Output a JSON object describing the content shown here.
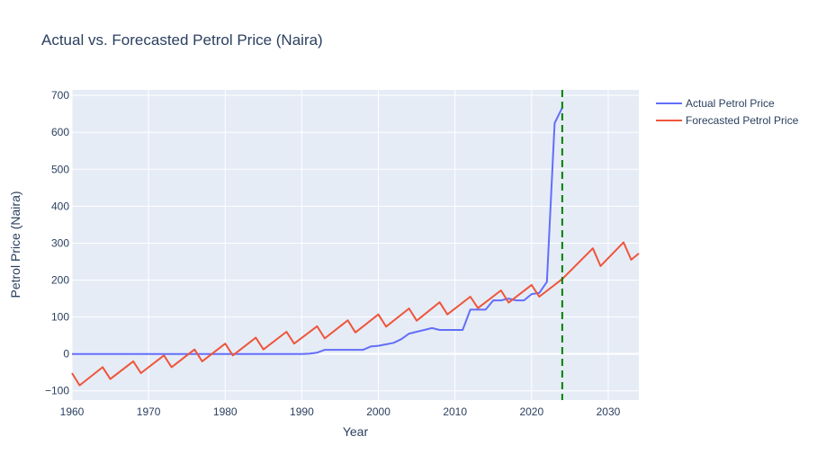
{
  "chart_data": {
    "type": "line",
    "title": "Actual vs. Forecasted Petrol Price (Naira)",
    "xlabel": "Year",
    "ylabel": "Petrol Price (Naira)",
    "xlim": [
      1960,
      2034
    ],
    "ylim": [
      -125,
      715
    ],
    "x_ticks": [
      1960,
      1970,
      1980,
      1990,
      2000,
      2010,
      2020,
      2030
    ],
    "y_ticks": [
      -100,
      0,
      100,
      200,
      300,
      400,
      500,
      600,
      700
    ],
    "grid": true,
    "legend_position": "top-right",
    "vertical_line": {
      "x": 2024,
      "color": "#008000",
      "style": "dashed"
    },
    "series": [
      {
        "name": "Actual Petrol Price",
        "color": "#636efa",
        "x": [
          1960,
          1970,
          1980,
          1990,
          1991,
          1992,
          1993,
          1994,
          1995,
          1996,
          1997,
          1998,
          1999,
          2000,
          2001,
          2002,
          2003,
          2004,
          2005,
          2006,
          2007,
          2008,
          2009,
          2010,
          2011,
          2012,
          2013,
          2014,
          2015,
          2016,
          2017,
          2018,
          2019,
          2020,
          2021,
          2022,
          2023,
          2024
        ],
        "values": [
          0,
          0,
          0,
          0,
          0.7,
          3.3,
          11,
          11,
          11,
          11,
          11,
          11,
          20,
          22,
          26,
          30,
          40,
          55,
          60,
          65,
          70,
          65,
          65,
          65,
          65,
          120,
          120,
          120,
          145,
          145,
          150,
          145,
          145,
          162,
          165,
          195,
          625,
          667
        ]
      },
      {
        "name": "Forecasted Petrol Price",
        "color": "#ef553b",
        "x": [
          1960,
          1961,
          1964,
          1965,
          1968,
          1969,
          1972,
          1973,
          1976,
          1977,
          1980,
          1981,
          1984,
          1985,
          1988,
          1989,
          1992,
          1993,
          1996,
          1997,
          2000,
          2001,
          2004,
          2005,
          2008,
          2009,
          2012,
          2013,
          2016,
          2017,
          2020,
          2021,
          2024,
          2028,
          2029,
          2032,
          2033,
          2034
        ],
        "values": [
          -52,
          -85,
          -36,
          -68,
          -20,
          -52,
          -4,
          -36,
          12,
          -20,
          28,
          -4,
          44,
          12,
          60,
          28,
          75,
          42,
          91,
          58,
          107,
          74,
          123,
          90,
          140,
          107,
          155,
          124,
          172,
          139,
          187,
          155,
          203,
          286,
          238,
          302,
          255,
          272
        ]
      }
    ]
  }
}
